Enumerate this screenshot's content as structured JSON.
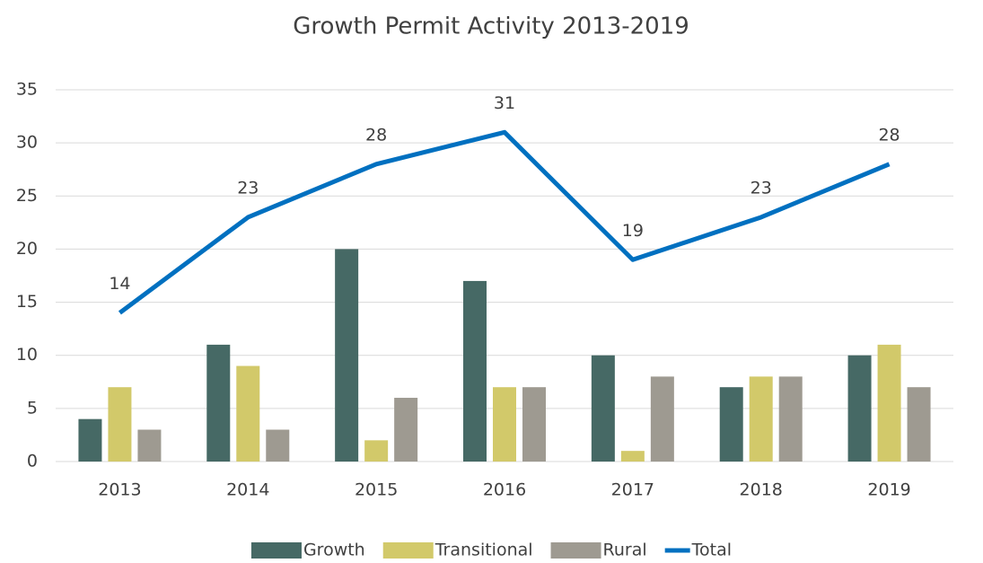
{
  "chart_data": {
    "type": "bar",
    "title": "Growth Permit  Activity 2013-2019",
    "categories": [
      "2013",
      "2014",
      "2015",
      "2016",
      "2017",
      "2018",
      "2019"
    ],
    "series": [
      {
        "name": "Growth",
        "color": "#466965",
        "values": [
          4,
          11,
          20,
          17,
          10,
          7,
          10
        ]
      },
      {
        "name": "Transitional",
        "color": "#d2c96a",
        "values": [
          7,
          9,
          2,
          7,
          1,
          8,
          11
        ]
      },
      {
        "name": "Rural",
        "color": "#9e9a91",
        "values": [
          3,
          3,
          6,
          7,
          8,
          8,
          7
        ]
      },
      {
        "name": "Total",
        "color": "#0070c0",
        "type": "line",
        "data_labels": true,
        "values": [
          14,
          23,
          28,
          31,
          19,
          23,
          28
        ]
      }
    ],
    "ylim": [
      0,
      35
    ],
    "yticks": [
      0,
      5,
      10,
      15,
      20,
      25,
      30,
      35
    ],
    "grid": true,
    "legend": "bottom"
  }
}
